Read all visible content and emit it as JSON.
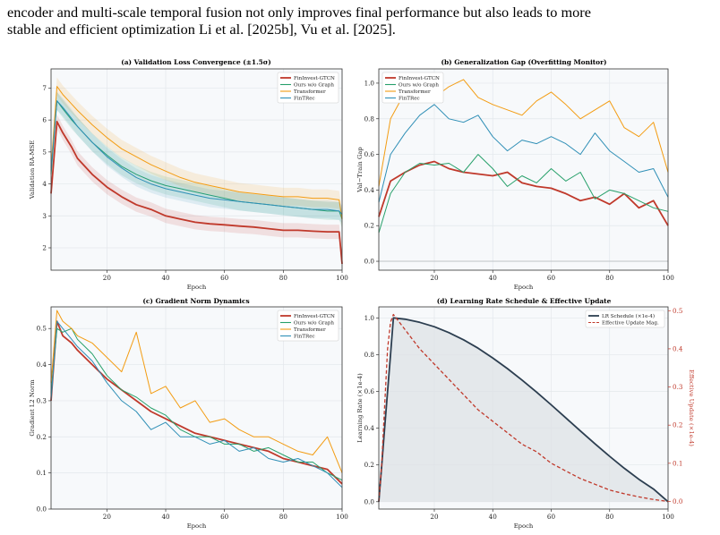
{
  "paper": {
    "line1": "encoder and multi-scale temporal fusion not only improves final performance but also leads to more",
    "line2": "stable and efficient optimization Li et al. [2025b], Vu et al. [2025]."
  },
  "colors": {
    "fininvest": "#c0392b",
    "ours_wo_graph": "#27a06a",
    "transformer": "#f39c12",
    "fintrec": "#2f8fb6",
    "lr": "#2c3e50",
    "effective": "#c0392b"
  },
  "chart_data": [
    {
      "type": "line",
      "title": "(a) Validation Loss Convergence (±1.5σ)",
      "xlabel": "Epoch",
      "ylabel": "Validation RA-MSE",
      "xlim": [
        1,
        100
      ],
      "ylim": [
        1.3,
        7.6
      ],
      "xticks": [
        20,
        40,
        60,
        80,
        100
      ],
      "yticks": [
        2,
        3,
        4,
        5,
        6,
        7
      ],
      "grid": true,
      "legend": "top-right",
      "series": [
        {
          "name": "FinInvest-GTCN",
          "key": "fininvest",
          "x": [
            1,
            3,
            5,
            8,
            10,
            15,
            20,
            25,
            30,
            35,
            40,
            45,
            50,
            55,
            60,
            65,
            70,
            75,
            80,
            85,
            90,
            95,
            99,
            100
          ],
          "values": [
            3.7,
            5.95,
            5.6,
            5.15,
            4.8,
            4.3,
            3.9,
            3.6,
            3.35,
            3.2,
            3.0,
            2.9,
            2.8,
            2.75,
            2.72,
            2.68,
            2.65,
            2.6,
            2.55,
            2.55,
            2.52,
            2.5,
            2.5,
            1.5
          ]
        },
        {
          "name": "Ours w/o Graph",
          "key": "ours_wo_graph",
          "x": [
            1,
            3,
            5,
            8,
            10,
            15,
            20,
            25,
            30,
            35,
            40,
            45,
            50,
            55,
            60,
            65,
            70,
            75,
            80,
            85,
            90,
            95,
            99,
            100
          ],
          "values": [
            4.3,
            6.6,
            6.35,
            6.0,
            5.8,
            5.3,
            4.9,
            4.55,
            4.3,
            4.1,
            3.95,
            3.85,
            3.75,
            3.65,
            3.55,
            3.45,
            3.4,
            3.35,
            3.3,
            3.25,
            3.2,
            3.15,
            3.15,
            2.9
          ]
        },
        {
          "name": "Transformer",
          "key": "transformer",
          "x": [
            1,
            3,
            5,
            8,
            10,
            15,
            20,
            25,
            30,
            35,
            40,
            45,
            50,
            55,
            60,
            65,
            70,
            75,
            80,
            85,
            90,
            95,
            99,
            100
          ],
          "values": [
            4.5,
            7.05,
            6.8,
            6.5,
            6.3,
            5.85,
            5.45,
            5.1,
            4.85,
            4.6,
            4.4,
            4.2,
            4.05,
            3.95,
            3.85,
            3.75,
            3.7,
            3.65,
            3.6,
            3.6,
            3.55,
            3.55,
            3.5,
            2.9
          ]
        },
        {
          "name": "FinTRec",
          "key": "fintrec",
          "x": [
            1,
            3,
            5,
            8,
            10,
            15,
            20,
            25,
            30,
            35,
            40,
            45,
            50,
            55,
            60,
            65,
            70,
            75,
            80,
            85,
            90,
            95,
            99,
            100
          ],
          "values": [
            4.4,
            6.6,
            6.4,
            6.05,
            5.8,
            5.3,
            4.85,
            4.5,
            4.2,
            4.0,
            3.85,
            3.75,
            3.65,
            3.55,
            3.5,
            3.45,
            3.4,
            3.35,
            3.3,
            3.25,
            3.2,
            3.2,
            3.15,
            3.05
          ]
        }
      ]
    },
    {
      "type": "line",
      "title": "(b) Generalization Gap (Overfitting Monitor)",
      "xlabel": "Epoch",
      "ylabel": "Val−Train Gap",
      "xlim": [
        1,
        100
      ],
      "ylim": [
        -0.05,
        1.08
      ],
      "xticks": [
        20,
        40,
        60,
        80,
        100
      ],
      "yticks": [
        0.0,
        0.2,
        0.4,
        0.6,
        0.8,
        1.0
      ],
      "grid": true,
      "legend": "top-left",
      "series": [
        {
          "name": "FinInvest-GTCN",
          "key": "fininvest",
          "x": [
            1,
            5,
            10,
            15,
            20,
            25,
            30,
            35,
            40,
            45,
            50,
            55,
            60,
            65,
            70,
            75,
            80,
            85,
            90,
            95,
            100
          ],
          "values": [
            0.25,
            0.45,
            0.5,
            0.54,
            0.56,
            0.52,
            0.5,
            0.49,
            0.48,
            0.5,
            0.44,
            0.42,
            0.41,
            0.38,
            0.34,
            0.36,
            0.32,
            0.38,
            0.3,
            0.34,
            0.2
          ]
        },
        {
          "name": "Ours w/o Graph",
          "key": "ours_wo_graph",
          "x": [
            1,
            5,
            10,
            15,
            20,
            25,
            30,
            35,
            40,
            45,
            50,
            55,
            60,
            65,
            70,
            75,
            80,
            85,
            90,
            95,
            100
          ],
          "values": [
            0.16,
            0.38,
            0.5,
            0.55,
            0.54,
            0.55,
            0.5,
            0.6,
            0.52,
            0.42,
            0.48,
            0.44,
            0.52,
            0.45,
            0.5,
            0.35,
            0.4,
            0.38,
            0.34,
            0.3,
            0.28
          ]
        },
        {
          "name": "Transformer",
          "key": "transformer",
          "x": [
            1,
            5,
            10,
            15,
            20,
            25,
            30,
            35,
            40,
            45,
            50,
            55,
            60,
            65,
            70,
            75,
            80,
            85,
            90,
            95,
            100
          ],
          "values": [
            0.42,
            0.8,
            0.95,
            0.93,
            0.92,
            0.98,
            1.02,
            0.92,
            0.88,
            0.85,
            0.82,
            0.9,
            0.95,
            0.88,
            0.8,
            0.85,
            0.9,
            0.75,
            0.7,
            0.78,
            0.5
          ]
        },
        {
          "name": "FinTRec",
          "key": "fintrec",
          "x": [
            1,
            5,
            10,
            15,
            20,
            25,
            30,
            35,
            40,
            45,
            50,
            55,
            60,
            65,
            70,
            75,
            80,
            85,
            90,
            95,
            100
          ],
          "values": [
            0.33,
            0.6,
            0.72,
            0.82,
            0.88,
            0.8,
            0.78,
            0.82,
            0.7,
            0.62,
            0.68,
            0.66,
            0.7,
            0.66,
            0.6,
            0.72,
            0.62,
            0.56,
            0.5,
            0.52,
            0.36
          ]
        },
        {
          "name": "",
          "key": "zero",
          "x": [
            1,
            100
          ],
          "values": [
            0,
            0
          ]
        }
      ]
    },
    {
      "type": "line",
      "title": "(c) Gradient Norm Dynamics",
      "xlabel": "Epoch",
      "ylabel": "Gradient L2 Norm",
      "xlim": [
        1,
        100
      ],
      "ylim": [
        0.0,
        0.56
      ],
      "xticks": [
        20,
        40,
        60,
        80,
        100
      ],
      "yticks": [
        0.0,
        0.1,
        0.2,
        0.3,
        0.4,
        0.5
      ],
      "grid": true,
      "legend": "top-right",
      "series": [
        {
          "name": "FinInvest-GTCN",
          "key": "fininvest",
          "x": [
            1,
            3,
            5,
            8,
            10,
            15,
            20,
            25,
            30,
            35,
            40,
            45,
            50,
            55,
            60,
            65,
            70,
            75,
            80,
            85,
            90,
            95,
            100
          ],
          "values": [
            0.3,
            0.52,
            0.48,
            0.46,
            0.44,
            0.4,
            0.36,
            0.33,
            0.3,
            0.27,
            0.25,
            0.23,
            0.21,
            0.2,
            0.19,
            0.18,
            0.17,
            0.16,
            0.14,
            0.13,
            0.12,
            0.11,
            0.07
          ]
        },
        {
          "name": "Ours w/o Graph",
          "key": "ours_wo_graph",
          "x": [
            1,
            3,
            5,
            8,
            10,
            15,
            20,
            25,
            30,
            35,
            40,
            45,
            50,
            55,
            60,
            65,
            70,
            75,
            80,
            85,
            90,
            95,
            100
          ],
          "values": [
            0.32,
            0.5,
            0.49,
            0.5,
            0.47,
            0.43,
            0.37,
            0.33,
            0.31,
            0.28,
            0.26,
            0.22,
            0.2,
            0.2,
            0.18,
            0.18,
            0.16,
            0.17,
            0.15,
            0.13,
            0.13,
            0.1,
            0.08
          ]
        },
        {
          "name": "Transformer",
          "key": "transformer",
          "x": [
            1,
            3,
            5,
            8,
            10,
            15,
            20,
            25,
            30,
            35,
            40,
            45,
            50,
            55,
            60,
            65,
            70,
            75,
            80,
            85,
            90,
            95,
            100
          ],
          "values": [
            0.35,
            0.55,
            0.52,
            0.5,
            0.48,
            0.46,
            0.42,
            0.38,
            0.49,
            0.32,
            0.34,
            0.28,
            0.3,
            0.24,
            0.25,
            0.22,
            0.2,
            0.2,
            0.18,
            0.16,
            0.15,
            0.2,
            0.1
          ]
        },
        {
          "name": "FinTRec",
          "key": "fintrec",
          "x": [
            1,
            3,
            5,
            8,
            10,
            15,
            20,
            25,
            30,
            35,
            40,
            45,
            50,
            55,
            60,
            65,
            70,
            75,
            80,
            85,
            90,
            95,
            100
          ],
          "values": [
            0.3,
            0.52,
            0.5,
            0.47,
            0.45,
            0.41,
            0.35,
            0.3,
            0.27,
            0.22,
            0.24,
            0.2,
            0.2,
            0.18,
            0.19,
            0.16,
            0.17,
            0.14,
            0.13,
            0.14,
            0.12,
            0.1,
            0.06
          ]
        }
      ]
    },
    {
      "type": "line",
      "title": "(d) Learning Rate Schedule & Effective Update",
      "xlabel": "Epoch",
      "ylabel": "Learning Rate (×1e-4)",
      "y2label": "Effective Update (×1e-4)",
      "xlim": [
        1,
        100
      ],
      "ylim": [
        -0.04,
        1.06
      ],
      "y2lim": [
        -0.02,
        0.51
      ],
      "xticks": [
        20,
        40,
        60,
        80,
        100
      ],
      "yticks": [
        0.0,
        0.2,
        0.4,
        0.6,
        0.8,
        1.0
      ],
      "y2ticks": [
        0.0,
        0.1,
        0.2,
        0.3,
        0.4,
        0.5
      ],
      "grid": true,
      "legend": "top-right",
      "series": [
        {
          "name": "LR Schedule (×1e-4)",
          "key": "lr",
          "axis": "left",
          "x": [
            1,
            2,
            3,
            4,
            5,
            6,
            10,
            15,
            20,
            25,
            30,
            35,
            40,
            45,
            50,
            55,
            60,
            65,
            70,
            75,
            80,
            85,
            90,
            95,
            100
          ],
          "values": [
            0.0,
            0.2,
            0.4,
            0.6,
            0.8,
            1.0,
            0.993,
            0.976,
            0.952,
            0.92,
            0.881,
            0.835,
            0.782,
            0.724,
            0.662,
            0.596,
            0.527,
            0.456,
            0.385,
            0.315,
            0.247,
            0.182,
            0.122,
            0.069,
            0.0
          ]
        },
        {
          "name": "Effective Update Mag.",
          "key": "effective",
          "axis": "right",
          "x": [
            1,
            2,
            3,
            4,
            5,
            6,
            10,
            15,
            20,
            25,
            30,
            35,
            40,
            45,
            50,
            55,
            60,
            65,
            70,
            75,
            80,
            85,
            90,
            95,
            100
          ],
          "values": [
            0.0,
            0.1,
            0.25,
            0.4,
            0.47,
            0.49,
            0.45,
            0.4,
            0.36,
            0.32,
            0.28,
            0.24,
            0.21,
            0.18,
            0.15,
            0.13,
            0.1,
            0.08,
            0.06,
            0.045,
            0.03,
            0.02,
            0.012,
            0.005,
            0.0
          ]
        }
      ]
    }
  ]
}
